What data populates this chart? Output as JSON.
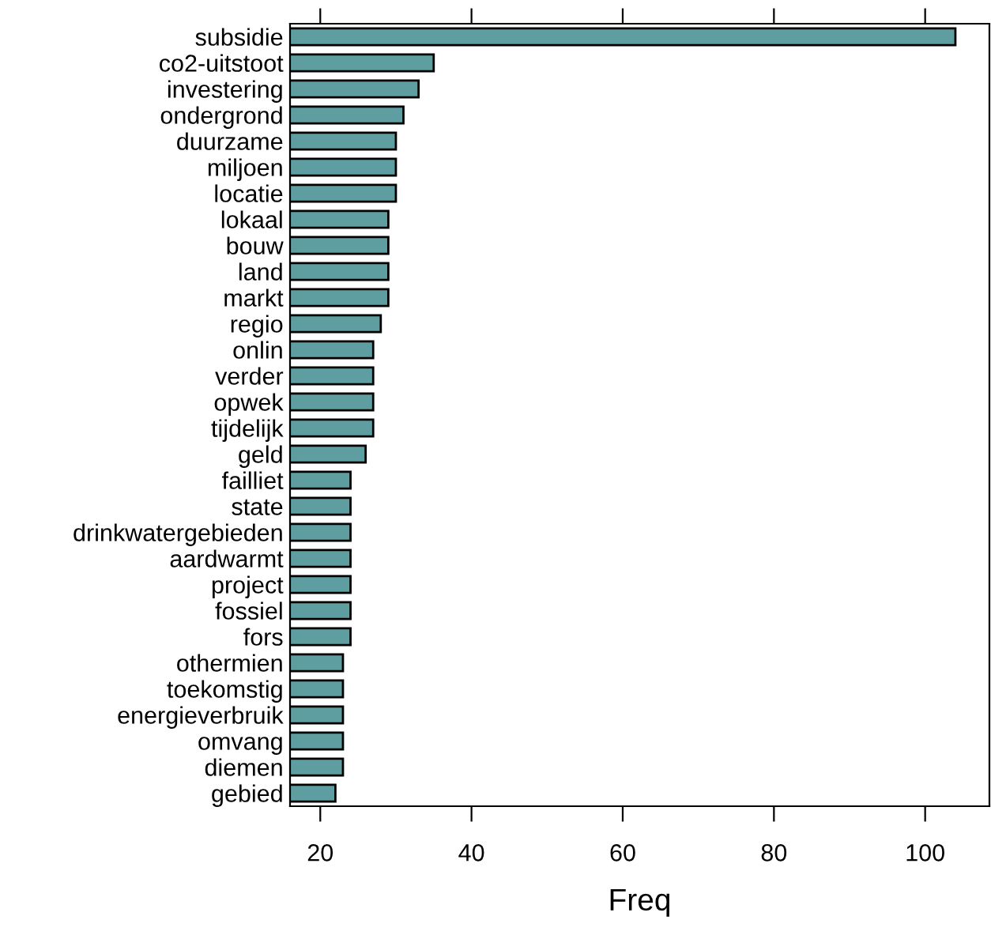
{
  "chart_data": {
    "type": "bar",
    "orientation": "horizontal",
    "xlabel": "Freq",
    "categories": [
      "subsidie",
      "co2-uitstoot",
      "investering",
      "ondergrond",
      "duurzame",
      "miljoen",
      "locatie",
      "lokaal",
      "bouw",
      "land",
      "markt",
      "regio",
      "onlin",
      "verder",
      "opwek",
      "tijdelijk",
      "geld",
      "failliet",
      "state",
      "drinkwatergebieden",
      "aardwarmt",
      "project",
      "fossiel",
      "fors",
      "othermien",
      "toekomstig",
      "energieverbruik",
      "omvang",
      "diemen",
      "gebied"
    ],
    "values": [
      104,
      35,
      33,
      31,
      30,
      30,
      30,
      29,
      29,
      29,
      29,
      28,
      27,
      27,
      27,
      27,
      26,
      24,
      24,
      24,
      24,
      24,
      24,
      24,
      23,
      23,
      23,
      23,
      23,
      22
    ],
    "color": "#5f9ea0",
    "xlim": [
      16,
      108.5
    ],
    "xticks": [
      20,
      40,
      60,
      80,
      100
    ],
    "grid": false,
    "legend": false
  }
}
